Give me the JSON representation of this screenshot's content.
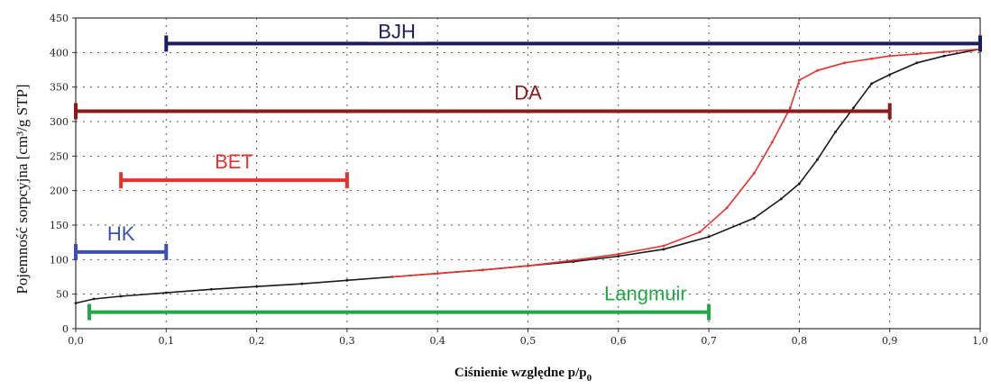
{
  "chart_data": {
    "type": "line",
    "xlabel": "Ciśnienie względne p/p",
    "xlabel_sub": "0",
    "ylabel": "Pojemność sorpcyjna [cm³/g STP]",
    "xlim": [
      0,
      1
    ],
    "ylim": [
      0,
      450
    ],
    "x_ticks": [
      "0,0",
      "0,1",
      "0,2",
      "0,3",
      "0,4",
      "0,5",
      "0,6",
      "0,7",
      "0,8",
      "0,9",
      "1,0"
    ],
    "y_ticks": [
      "0",
      "50",
      "100",
      "150",
      "200",
      "250",
      "300",
      "350",
      "400",
      "450"
    ],
    "grid": true,
    "series": [
      {
        "color": "#1a1a1a",
        "x": [
          0.0,
          0.02,
          0.05,
          0.1,
          0.15,
          0.2,
          0.25,
          0.3,
          0.35,
          0.4,
          0.45,
          0.5,
          0.55,
          0.6,
          0.65,
          0.7,
          0.75,
          0.78,
          0.8,
          0.82,
          0.84,
          0.86,
          0.88,
          0.9,
          0.93,
          0.96,
          1.0
        ],
        "y": [
          37,
          43,
          47,
          52,
          57,
          61,
          65,
          70,
          75,
          80,
          85,
          91,
          97,
          105,
          115,
          133,
          160,
          188,
          210,
          245,
          285,
          320,
          355,
          368,
          385,
          395,
          405
        ]
      },
      {
        "color": "#e8322e",
        "x": [
          0.35,
          0.4,
          0.45,
          0.5,
          0.55,
          0.6,
          0.65,
          0.69,
          0.72,
          0.75,
          0.77,
          0.79,
          0.8,
          0.82,
          0.85,
          0.88,
          0.9,
          0.93,
          0.96,
          1.0
        ],
        "y": [
          75,
          80,
          85,
          91,
          99,
          108,
          120,
          140,
          175,
          225,
          270,
          320,
          360,
          374,
          385,
          391,
          395,
          398,
          401,
          405
        ]
      }
    ],
    "ranges": [
      {
        "label": "BJH",
        "x0": 0.1,
        "x1": 1.0,
        "y": 413,
        "color": "#1b1f5e"
      },
      {
        "label": "DA",
        "x0": 0.0,
        "x1": 0.9,
        "y": 315,
        "color": "#8b1a1a"
      },
      {
        "label": "BET",
        "x0": 0.05,
        "x1": 0.3,
        "y": 215,
        "color": "#e8322e"
      },
      {
        "label": "HK",
        "x0": 0.0,
        "x1": 0.1,
        "y": 111,
        "color": "#3e4fb3"
      },
      {
        "label": "Langmuir",
        "x0": 0.015,
        "x1": 0.7,
        "y": 24,
        "color": "#22a845"
      }
    ]
  }
}
